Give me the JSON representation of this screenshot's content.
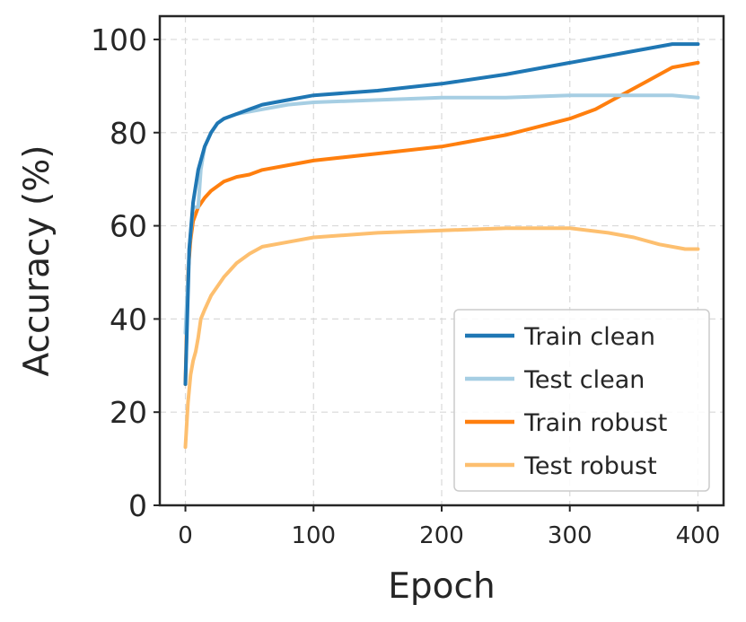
{
  "chart_data": {
    "type": "line",
    "title": "",
    "xlabel": "Epoch",
    "ylabel": "Accuracy (%)",
    "xlim": [
      -20,
      420
    ],
    "ylim": [
      0,
      105
    ],
    "xticks": [
      0,
      100,
      200,
      300,
      400
    ],
    "yticks": [
      0,
      20,
      40,
      60,
      80,
      100
    ],
    "grid": true,
    "legend_position": "bottom-right",
    "series": [
      {
        "name": "Train clean",
        "color": "#1f77b4",
        "x": [
          0,
          3,
          6,
          10,
          15,
          20,
          25,
          30,
          40,
          50,
          60,
          80,
          100,
          150,
          200,
          250,
          300,
          350,
          380,
          400
        ],
        "y": [
          26,
          55,
          65,
          72,
          77,
          80,
          82,
          83,
          84,
          85,
          86,
          87,
          88,
          89,
          90.5,
          92.5,
          95,
          97.5,
          99,
          99
        ]
      },
      {
        "name": "Test clean",
        "color": "#a6cee3",
        "x": [
          0,
          3,
          6,
          10,
          12,
          15,
          20,
          25,
          30,
          40,
          50,
          60,
          80,
          100,
          150,
          200,
          250,
          300,
          350,
          380,
          400
        ],
        "y": [
          37,
          55,
          64,
          64,
          72,
          77,
          80,
          82,
          83,
          84,
          84.5,
          85,
          86,
          86.5,
          87,
          87.5,
          87.5,
          88,
          88,
          88,
          87.5
        ]
      },
      {
        "name": "Train robust",
        "color": "#ff7f0e",
        "x": [
          0,
          2,
          4,
          6,
          10,
          15,
          20,
          30,
          40,
          50,
          60,
          80,
          100,
          150,
          200,
          250,
          300,
          320,
          340,
          360,
          380,
          400
        ],
        "y": [
          26,
          50,
          57,
          61,
          64,
          66,
          67.5,
          69.5,
          70.5,
          71,
          72,
          73,
          74,
          75.5,
          77,
          79.5,
          83,
          85,
          88,
          91,
          94,
          95
        ]
      },
      {
        "name": "Test robust",
        "color": "#fdbf6f",
        "x": [
          0,
          2,
          4,
          6,
          8,
          10,
          12,
          15,
          20,
          30,
          40,
          50,
          60,
          80,
          100,
          150,
          200,
          250,
          300,
          330,
          350,
          370,
          390,
          400
        ],
        "y": [
          12.5,
          22,
          28,
          31,
          33,
          36,
          40,
          42,
          45,
          49,
          52,
          54,
          55.5,
          56.5,
          57.5,
          58.5,
          59,
          59.5,
          59.5,
          58.5,
          57.5,
          56,
          55,
          55
        ]
      }
    ]
  }
}
